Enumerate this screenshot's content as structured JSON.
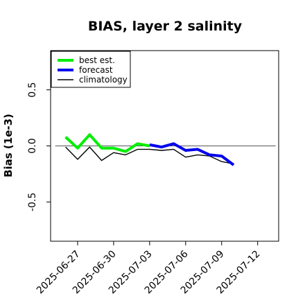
{
  "chart_data": {
    "type": "line",
    "title": "BIAS, layer 2 salinity",
    "ylabel": "Bias (1e-3)",
    "xlabel": "",
    "ylim": [
      -0.85,
      0.85
    ],
    "xlim": [
      "2025-06-24T18:00",
      "2025-07-13T18:00"
    ],
    "yticks": [
      -0.5,
      0.0,
      0.5
    ],
    "ytick_labels": [
      "-0.5",
      "0.0",
      "0.5"
    ],
    "xticks": [
      "2025-06-27",
      "2025-06-30",
      "2025-07-03",
      "2025-07-06",
      "2025-07-09",
      "2025-07-12"
    ],
    "xtick_colors": [
      "#000000",
      "#000000",
      "#228B22",
      "#000000",
      "#000000",
      "#000000"
    ],
    "reference_line": 0.0,
    "legend_position": "top-left",
    "series": [
      {
        "name": "best est.",
        "color": "#00ee00",
        "width": "thick",
        "x": [
          "2025-06-26",
          "2025-06-27",
          "2025-06-28",
          "2025-06-29",
          "2025-06-30",
          "2025-07-01",
          "2025-07-02",
          "2025-07-03"
        ],
        "y": [
          0.08,
          -0.02,
          0.1,
          -0.02,
          -0.02,
          -0.05,
          0.02,
          0.0
        ]
      },
      {
        "name": "forecast",
        "color": "#0000ee",
        "width": "thick",
        "x": [
          "2025-07-03",
          "2025-07-04",
          "2025-07-05",
          "2025-07-06",
          "2025-07-07",
          "2025-07-08",
          "2025-07-09",
          "2025-07-10"
        ],
        "y": [
          0.01,
          -0.01,
          0.02,
          -0.04,
          -0.03,
          -0.08,
          -0.09,
          -0.17
        ]
      },
      {
        "name": "climatology",
        "color": "#000000",
        "width": "thin",
        "x": [
          "2025-06-26",
          "2025-06-27",
          "2025-06-28",
          "2025-06-29",
          "2025-06-30",
          "2025-07-01",
          "2025-07-02",
          "2025-07-03",
          "2025-07-04",
          "2025-07-05",
          "2025-07-06",
          "2025-07-07",
          "2025-07-08",
          "2025-07-09",
          "2025-07-10"
        ],
        "y": [
          -0.01,
          -0.12,
          -0.01,
          -0.13,
          -0.06,
          -0.08,
          -0.03,
          -0.03,
          -0.04,
          -0.03,
          -0.1,
          -0.08,
          -0.09,
          -0.14,
          -0.16
        ]
      }
    ]
  }
}
